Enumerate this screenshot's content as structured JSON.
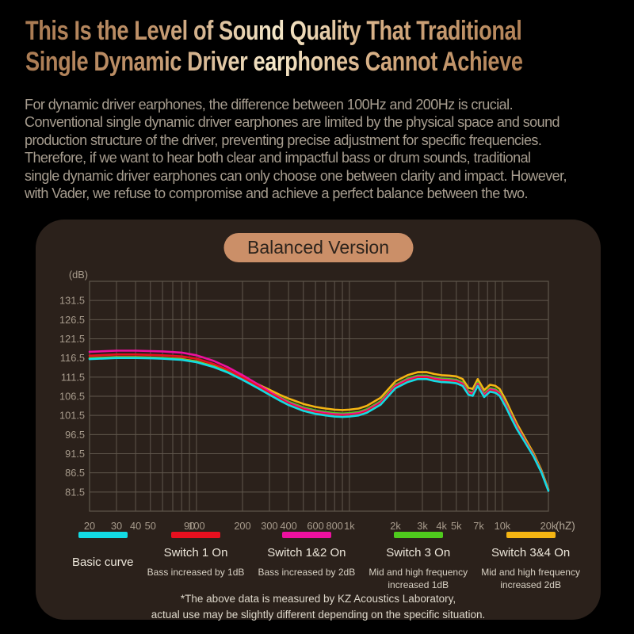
{
  "colors": {
    "background": "#000000",
    "panel_bg": "#2b211b",
    "badge_bg": "#cb8f68",
    "accent_tan": "#cb8f68",
    "grid": "#60574d",
    "axis_text": "#a79b8c"
  },
  "header": {
    "title_line1": "This Is the Level of Sound Quality That Traditional",
    "title_line2": "Single Dynamic Driver earphones Cannot Achieve",
    "paragraph": "For dynamic driver earphones, the difference between 100Hz and 200Hz is crucial.\nConventional single dynamic driver earphones are limited by the physical space and sound\nproduction structure of the driver, preventing precise adjustment for specific frequencies.\nTherefore, if we want to hear both clear and impactful bass or drum sounds, traditional\nsingle dynamic driver earphones can only choose one between clarity and impact. However,\nwith Vader, we refuse to compromise and achieve a perfect balance between the two."
  },
  "panel": {
    "badge_label": "Balanced Version",
    "footnote": "*The above data is measured by KZ Acoustics Laboratory,\nactual use may be slightly different depending on the specific situation."
  },
  "legend": [
    {
      "name": "Basic curve",
      "sub": "",
      "color": "#13dbe4"
    },
    {
      "name": "Switch 1 On",
      "sub": "Bass increased by 1dB",
      "color": "#e8101f"
    },
    {
      "name": "Switch 1&2 On",
      "sub": "Bass increased by 2dB",
      "color": "#ee10a0"
    },
    {
      "name": "Switch 3 On",
      "sub": "Mid and high frequency\nincreased 1dB",
      "color": "#4fcb1d"
    },
    {
      "name": "Switch 3&4 On",
      "sub": "Mid and high frequency\nincreased 2dB",
      "color": "#f5b513"
    }
  ],
  "chart_data": {
    "type": "line",
    "title": "Balanced Version",
    "x_unit": "(hZ)",
    "y_unit": "(dB)",
    "x_scale": "log",
    "xlim": [
      20,
      20000
    ],
    "ylim": [
      76.5,
      136.5
    ],
    "grid": true,
    "grid_color": "#60574d",
    "y_ticks": [
      131.5,
      126.5,
      121.5,
      116.5,
      111.5,
      106.5,
      101.5,
      96.5,
      91.5,
      86.5,
      81.5
    ],
    "x_ticks": [
      {
        "f": 20,
        "label": "20"
      },
      {
        "f": 30,
        "label": "30"
      },
      {
        "f": 40,
        "label": "40"
      },
      {
        "f": 50,
        "label": "50"
      },
      {
        "f": 90,
        "label": "90"
      },
      {
        "f": 100,
        "label": "100"
      },
      {
        "f": 200,
        "label": "200"
      },
      {
        "f": 300,
        "label": "300"
      },
      {
        "f": 400,
        "label": "400"
      },
      {
        "f": 600,
        "label": "600"
      },
      {
        "f": 800,
        "label": "800"
      },
      {
        "f": 1000,
        "label": "1k"
      },
      {
        "f": 2000,
        "label": "2k"
      },
      {
        "f": 3000,
        "label": "3k"
      },
      {
        "f": 4000,
        "label": "4k"
      },
      {
        "f": 5000,
        "label": "5k"
      },
      {
        "f": 7000,
        "label": "7k"
      },
      {
        "f": 10000,
        "label": "10k"
      },
      {
        "f": 20000,
        "label": "20k"
      }
    ],
    "grid_freqs": [
      20,
      30,
      40,
      50,
      60,
      70,
      80,
      90,
      100,
      200,
      300,
      400,
      500,
      600,
      700,
      800,
      900,
      1000,
      2000,
      3000,
      4000,
      5000,
      6000,
      7000,
      8000,
      9000,
      10000,
      20000
    ],
    "x": [
      20,
      30,
      40,
      50,
      60,
      80,
      100,
      130,
      160,
      200,
      250,
      300,
      350,
      400,
      500,
      600,
      700,
      800,
      900,
      1000,
      1150,
      1300,
      1600,
      2000,
      2400,
      2800,
      3200,
      3600,
      4000,
      4500,
      5000,
      5500,
      6000,
      6400,
      6900,
      7600,
      8300,
      9000,
      9600,
      10500,
      11500,
      12500,
      14000,
      16000,
      18000,
      20000
    ],
    "series": [
      {
        "name": "Basic curve",
        "color": "#13dbe4",
        "values": [
          116.2,
          116.5,
          116.5,
          116.4,
          116.3,
          116.0,
          115.4,
          114.1,
          112.7,
          110.8,
          108.7,
          106.9,
          105.4,
          104.2,
          102.7,
          101.9,
          101.5,
          101.2,
          101.1,
          101.2,
          101.5,
          102.2,
          104.3,
          108.6,
          110.2,
          111.0,
          111.0,
          110.5,
          110.2,
          110.1,
          109.9,
          109.2,
          106.9,
          106.6,
          109.2,
          106.3,
          107.7,
          107.4,
          106.6,
          103.8,
          100.6,
          97.8,
          94.6,
          90.8,
          86.6,
          81.8
        ]
      },
      {
        "name": "Switch 1 On",
        "color": "#e8101f",
        "values": [
          117.1,
          117.4,
          117.4,
          117.3,
          117.2,
          116.9,
          116.3,
          114.9,
          113.4,
          111.4,
          109.2,
          107.3,
          105.8,
          104.5,
          103.0,
          102.2,
          101.8,
          101.5,
          101.4,
          101.5,
          101.8,
          102.5,
          104.6,
          108.9,
          110.5,
          111.3,
          111.3,
          110.8,
          110.5,
          110.4,
          110.2,
          109.5,
          107.2,
          106.9,
          109.5,
          106.6,
          108.0,
          107.7,
          106.9,
          104.1,
          100.9,
          98.1,
          94.8,
          91.0,
          86.7,
          81.9
        ]
      },
      {
        "name": "Switch 1&2 On",
        "color": "#ee10a0",
        "values": [
          118.1,
          118.4,
          118.4,
          118.3,
          118.2,
          117.9,
          117.2,
          115.7,
          114.1,
          112.0,
          109.7,
          107.7,
          106.1,
          104.8,
          103.3,
          102.5,
          102.1,
          101.8,
          101.7,
          101.8,
          102.1,
          102.8,
          104.9,
          109.2,
          110.8,
          111.6,
          111.6,
          111.1,
          110.8,
          110.7,
          110.5,
          109.8,
          107.5,
          107.2,
          109.8,
          106.9,
          108.3,
          108.0,
          107.2,
          104.4,
          101.2,
          98.4,
          95.0,
          91.1,
          86.8,
          81.9
        ]
      },
      {
        "name": "Switch 3 On",
        "color": "#4fcb1d",
        "values": [
          116.3,
          116.6,
          116.6,
          116.5,
          116.4,
          116.1,
          115.5,
          114.2,
          113.0,
          111.2,
          109.3,
          107.6,
          106.3,
          105.1,
          103.6,
          102.8,
          102.4,
          102.1,
          102.0,
          102.1,
          102.4,
          103.1,
          105.2,
          109.5,
          111.1,
          111.9,
          111.9,
          111.4,
          111.1,
          111.0,
          110.8,
          110.1,
          107.8,
          107.5,
          110.1,
          107.2,
          108.6,
          108.3,
          107.5,
          104.7,
          101.4,
          98.5,
          95.1,
          91.2,
          86.9,
          82.0
        ]
      },
      {
        "name": "Switch 3&4 On",
        "color": "#f5b513",
        "values": [
          116.4,
          116.7,
          116.7,
          116.6,
          116.5,
          116.2,
          115.6,
          114.3,
          113.2,
          111.5,
          109.7,
          108.2,
          106.9,
          105.9,
          104.5,
          103.7,
          103.3,
          103.0,
          102.9,
          103.0,
          103.3,
          104.0,
          106.1,
          110.4,
          112.0,
          112.8,
          112.8,
          112.3,
          112.0,
          111.9,
          111.7,
          111.0,
          108.7,
          108.4,
          111.0,
          108.1,
          109.5,
          109.2,
          108.4,
          105.6,
          102.2,
          99.2,
          95.7,
          91.6,
          87.2,
          82.2
        ]
      }
    ]
  }
}
